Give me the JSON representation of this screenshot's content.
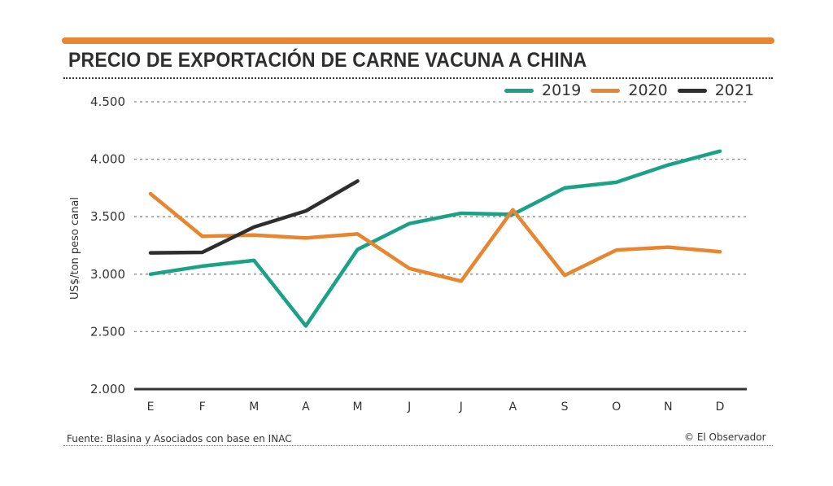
{
  "header": {
    "title": "PRECIO DE EXPORTACIÓN DE CARNE VACUNA A CHINA",
    "accent_color": "#e8852f"
  },
  "footer": {
    "source": "Fuente: Blasina y Asociados con base en INAC",
    "credit": "© El Observador"
  },
  "chart_data": {
    "type": "line",
    "title": "PRECIO DE EXPORTACIÓN DE CARNE VACUNA A CHINA",
    "xlabel": "",
    "ylabel": "US$/ton peso canal",
    "ylim": [
      2000,
      4500
    ],
    "yticks": [
      2000,
      2500,
      3000,
      3500,
      4000,
      4500
    ],
    "ytick_labels": [
      "2.000",
      "2.500",
      "3.000",
      "3.500",
      "4.000",
      "4.500"
    ],
    "categories": [
      "E",
      "F",
      "M",
      "A",
      "M",
      "J",
      "J",
      "A",
      "S",
      "O",
      "N",
      "D"
    ],
    "grid": "horizontal-dotted",
    "legend_position": "top-right",
    "series": [
      {
        "name": "2019",
        "color": "#1ba185",
        "values": [
          3000,
          3070,
          3120,
          2550,
          3215,
          3440,
          3530,
          3520,
          3750,
          3800,
          3950,
          4070
        ]
      },
      {
        "name": "2020",
        "color": "#e8852f",
        "values": [
          3700,
          3330,
          3340,
          3315,
          3350,
          3050,
          2940,
          3560,
          2990,
          3210,
          3235,
          3195
        ]
      },
      {
        "name": "2021",
        "color": "#2e2e2e",
        "values": [
          3185,
          3190,
          3410,
          3550,
          3810,
          null,
          null,
          null,
          null,
          null,
          null,
          null
        ]
      }
    ]
  }
}
